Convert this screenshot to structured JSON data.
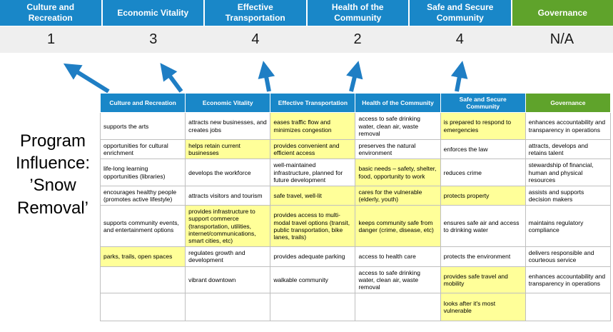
{
  "program_label": "Program Influence: ’Snow Removal’",
  "colors": {
    "header_blue": "#1987C8",
    "header_green": "#5FA32B",
    "highlight_yellow": "#FFFF99",
    "arrow_blue": "#1F7EC4",
    "score_row_bg": "#EFEFEF"
  },
  "banner": {
    "columns": [
      {
        "label": "Culture and Recreation",
        "score": "1",
        "theme": "blue"
      },
      {
        "label": "Economic Vitality",
        "score": "3",
        "theme": "blue"
      },
      {
        "label": "Effective Transportation",
        "score": "4",
        "theme": "blue"
      },
      {
        "label": "Health of the Community",
        "score": "2",
        "theme": "blue"
      },
      {
        "label": "Safe and Secure Community",
        "score": "4",
        "theme": "blue"
      },
      {
        "label": "Governance",
        "score": "N/A",
        "theme": "green"
      }
    ]
  },
  "table": {
    "headers": [
      {
        "label": "Culture and Recreation",
        "theme": "blue"
      },
      {
        "label": "Economic Vitality",
        "theme": "blue"
      },
      {
        "label": "Effective Transportation",
        "theme": "blue"
      },
      {
        "label": "Health of the Community",
        "theme": "blue"
      },
      {
        "label": "Safe and Secure Community",
        "theme": "blue"
      },
      {
        "label": "Governance",
        "theme": "green"
      }
    ],
    "rows": [
      [
        {
          "text": "supports the arts",
          "highlight": false
        },
        {
          "text": "attracts new businesses, and creates jobs",
          "highlight": false
        },
        {
          "text": "eases traffic flow and minimizes congestion",
          "highlight": true
        },
        {
          "text": "access to safe drinking water, clean air, waste removal",
          "highlight": false
        },
        {
          "text": "is prepared to respond to emergencies",
          "highlight": true
        },
        {
          "text": "enhances accountability and transparency in operations",
          "highlight": false
        }
      ],
      [
        {
          "text": "opportunities for cultural enrichment",
          "highlight": false
        },
        {
          "text": "helps retain current businesses",
          "highlight": true
        },
        {
          "text": "provides convenient and efficient access",
          "highlight": true
        },
        {
          "text": "preserves the natural environment",
          "highlight": false
        },
        {
          "text": "enforces the law",
          "highlight": false
        },
        {
          "text": "attracts, develops and retains talent",
          "highlight": false
        }
      ],
      [
        {
          "text": "life-long learning opportunities (libraries)",
          "highlight": false
        },
        {
          "text": "develops the workforce",
          "highlight": false
        },
        {
          "text": "well-maintained infrastructure, planned for future development",
          "highlight": false
        },
        {
          "text": "basic needs – safety, shelter, food, opportunity to work",
          "highlight": true
        },
        {
          "text": "reduces crime",
          "highlight": false
        },
        {
          "text": "stewardship of financial, human and physical resources",
          "highlight": false
        }
      ],
      [
        {
          "text": "encourages healthy people (promotes active lifestyle)",
          "highlight": false
        },
        {
          "text": "attracts visitors and tourism",
          "highlight": false
        },
        {
          "text": "safe travel, well-lit",
          "highlight": true
        },
        {
          "text": "cares for the vulnerable (elderly, youth)",
          "highlight": true
        },
        {
          "text": "protects property",
          "highlight": true
        },
        {
          "text": "assists and supports decision makers",
          "highlight": false
        }
      ],
      [
        {
          "text": "supports community events, and entertainment options",
          "highlight": false
        },
        {
          "text": "provides infrastructure to support commerce (transportation, utilities, internet/communications, smart cities, etc)",
          "highlight": true
        },
        {
          "text": "provides access to multi-modal travel options (transit, public transportation, bike lanes, trails)",
          "highlight": true
        },
        {
          "text": "keeps community safe from danger (crime, disease, etc)",
          "highlight": true
        },
        {
          "text": "ensures safe air and access to drinking water",
          "highlight": false
        },
        {
          "text": "maintains regulatory compliance",
          "highlight": false
        }
      ],
      [
        {
          "text": "parks, trails, open spaces",
          "highlight": true
        },
        {
          "text": "regulates growth and development",
          "highlight": false
        },
        {
          "text": "provides adequate parking",
          "highlight": false
        },
        {
          "text": "access to health care",
          "highlight": false
        },
        {
          "text": "protects the environment",
          "highlight": false
        },
        {
          "text": "delivers responsible and courteous service",
          "highlight": false
        }
      ],
      [
        {
          "text": "",
          "highlight": false
        },
        {
          "text": "vibrant downtown",
          "highlight": false
        },
        {
          "text": "walkable community",
          "highlight": false
        },
        {
          "text": "access to safe drinking water, clean air, waste removal",
          "highlight": false
        },
        {
          "text": "provides safe travel and mobility",
          "highlight": true
        },
        {
          "text": "enhances accountability and transparency in operations",
          "highlight": false
        }
      ],
      [
        {
          "text": "",
          "highlight": false
        },
        {
          "text": "",
          "highlight": false
        },
        {
          "text": "",
          "highlight": false
        },
        {
          "text": "",
          "highlight": false
        },
        {
          "text": "looks after it's most vulnerable",
          "highlight": true
        },
        {
          "text": "",
          "highlight": false
        }
      ]
    ]
  }
}
